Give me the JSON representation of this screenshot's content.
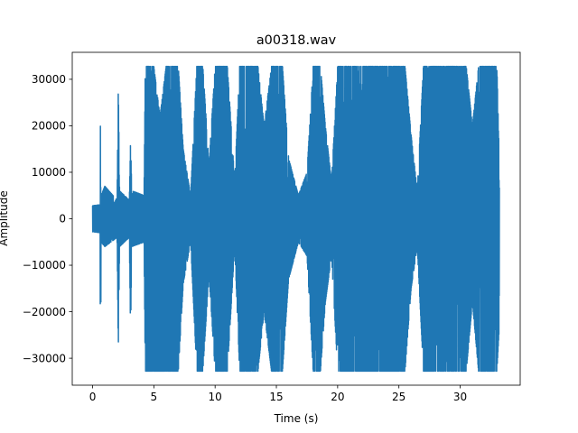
{
  "chart_data": {
    "type": "line",
    "title": "a00318.wav",
    "xlabel": "Time (s)",
    "ylabel": "Amplitude",
    "xlim": [
      -1.66,
      34.9
    ],
    "ylim": [
      -35800,
      35800
    ],
    "x_ticks": [
      0,
      5,
      10,
      15,
      20,
      25,
      30
    ],
    "x_tick_labels": [
      "0",
      "5",
      "10",
      "15",
      "20",
      "25",
      "30"
    ],
    "y_ticks": [
      -30000,
      -20000,
      -10000,
      0,
      10000,
      20000,
      30000
    ],
    "y_tick_labels": [
      "−30000",
      "−20000",
      "−10000",
      "0",
      "10000",
      "20000",
      "30000"
    ],
    "grid": false,
    "series": [
      {
        "color": "#1f77b4",
        "duration_s": 33.2,
        "sample_peak_amplitude": 32767,
        "envelope": {
          "x": [
            0.0,
            0.6,
            0.65,
            0.7,
            1.0,
            2.0,
            2.1,
            2.2,
            3.0,
            3.1,
            3.2,
            4.2,
            4.3,
            4.6,
            5.0,
            5.5,
            6.0,
            6.5,
            7.0,
            7.4,
            8.0,
            8.5,
            9.0,
            9.5,
            10.0,
            10.5,
            11.0,
            11.6,
            12.0,
            12.5,
            13.0,
            13.5,
            14.0,
            14.6,
            15.0,
            15.5,
            16.0,
            16.8,
            17.5,
            18.0,
            18.6,
            19.0,
            19.5,
            20.0,
            20.6,
            21.0,
            21.5,
            22.0,
            22.5,
            23.0,
            23.5,
            24.0,
            24.5,
            25.0,
            25.5,
            26.0,
            26.5,
            27.0,
            27.5,
            28.0,
            28.5,
            29.0,
            29.5,
            30.0,
            30.5,
            31.0,
            31.5,
            32.0,
            32.5,
            33.0,
            33.2
          ],
          "max": [
            2800,
            3000,
            25000,
            5000,
            7000,
            4000,
            29000,
            6000,
            4000,
            17000,
            6000,
            5000,
            32767,
            32767,
            32767,
            22000,
            32767,
            32767,
            32767,
            15000,
            5000,
            32767,
            32767,
            12000,
            32767,
            32767,
            32767,
            8000,
            32767,
            32767,
            32767,
            32767,
            20000,
            32767,
            32767,
            32767,
            13000,
            5000,
            10000,
            32767,
            32767,
            20000,
            8000,
            32767,
            32767,
            32767,
            32767,
            32767,
            32767,
            32767,
            32767,
            32767,
            32767,
            32767,
            32767,
            18000,
            6000,
            32767,
            32767,
            32767,
            32767,
            32767,
            32767,
            32767,
            32767,
            20000,
            32767,
            32767,
            32767,
            32767,
            12000
          ],
          "min": [
            -2800,
            -3000,
            -32767,
            -5000,
            -6000,
            -4000,
            -28000,
            -6000,
            -4000,
            -25000,
            -6000,
            -5000,
            -32767,
            -32767,
            -32767,
            -32767,
            -32767,
            -32767,
            -32767,
            -14000,
            -5000,
            -32767,
            -32767,
            -12000,
            -32767,
            -32767,
            -32767,
            -6000,
            -32767,
            -32767,
            -32767,
            -32767,
            -20000,
            -32767,
            -32767,
            -32767,
            -13000,
            -5000,
            -8000,
            -32767,
            -32767,
            -18000,
            -8000,
            -32767,
            -32767,
            -32767,
            -32767,
            -32767,
            -32767,
            -32767,
            -32767,
            -32767,
            -32767,
            -32767,
            -32767,
            -15000,
            -6000,
            -32767,
            -32767,
            -32767,
            -32767,
            -32767,
            -32767,
            -32767,
            -32767,
            -18000,
            -32767,
            -32767,
            -32767,
            -32767,
            -23000
          ]
        }
      }
    ]
  }
}
